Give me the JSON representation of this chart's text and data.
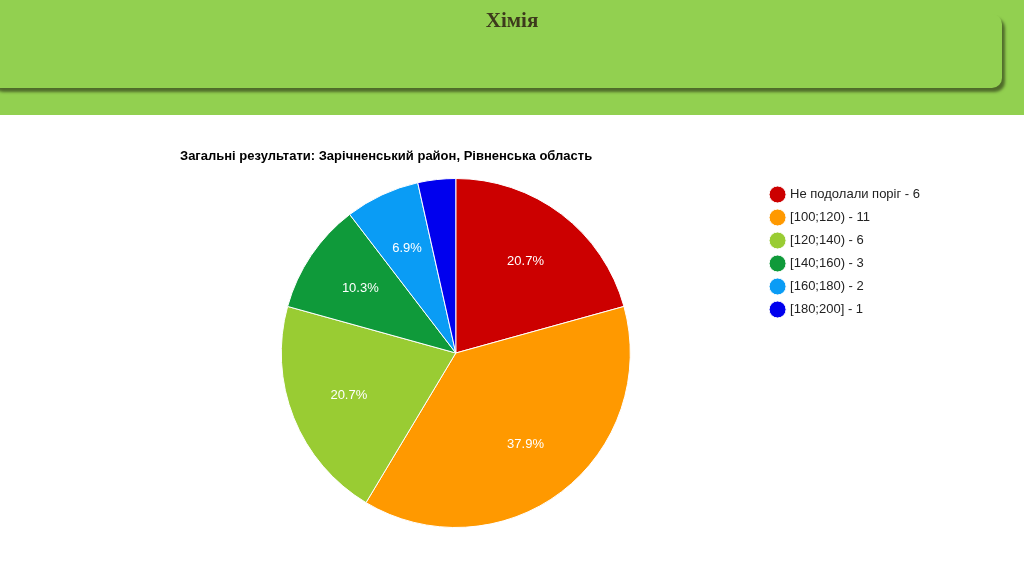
{
  "chart_data": {
    "type": "pie",
    "title": "Хімія",
    "subtitle": "Загальні результати: Зарічненський район, Рівненська область",
    "categories": [
      "Не подолали поріг - 6",
      "[100;120) - 11",
      "[120;140) - 6",
      "[140;160) - 3",
      "[160;180) - 2",
      "[180;200] - 1"
    ],
    "values": [
      20.7,
      37.9,
      20.7,
      10.3,
      6.9,
      3.5
    ],
    "colors": [
      "#cc0000",
      "#ff9900",
      "#99cc33",
      "#0f9a3a",
      "#0a9cf5",
      "#0000ee"
    ],
    "value_labels": [
      "20.7%",
      "37.9%",
      "20.7%",
      "10.3%",
      "6.9%",
      null
    ],
    "legend": "right"
  }
}
